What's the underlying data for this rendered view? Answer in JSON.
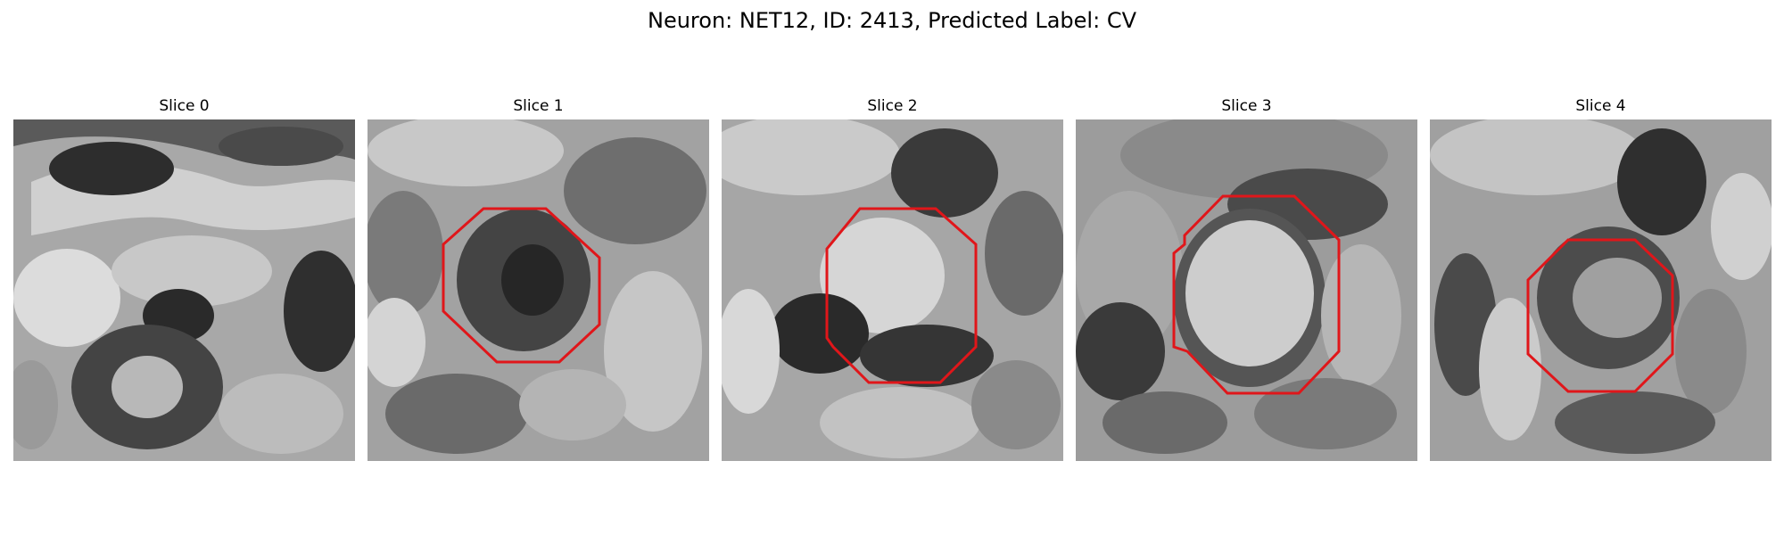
{
  "figure": {
    "title": "Neuron: NET12, ID: 2413, Predicted Label: CV",
    "neuron": "NET12",
    "id": "2413",
    "predicted_label": "CV"
  },
  "colors": {
    "background": "#ffffff",
    "contour": "#e0161a",
    "colormap": "grayscale"
  },
  "panels": [
    {
      "title": "Slice 0",
      "has_contour": false
    },
    {
      "title": "Slice 1",
      "has_contour": true
    },
    {
      "title": "Slice 2",
      "has_contour": true
    },
    {
      "title": "Slice 3",
      "has_contour": true
    },
    {
      "title": "Slice 4",
      "has_contour": true
    }
  ]
}
